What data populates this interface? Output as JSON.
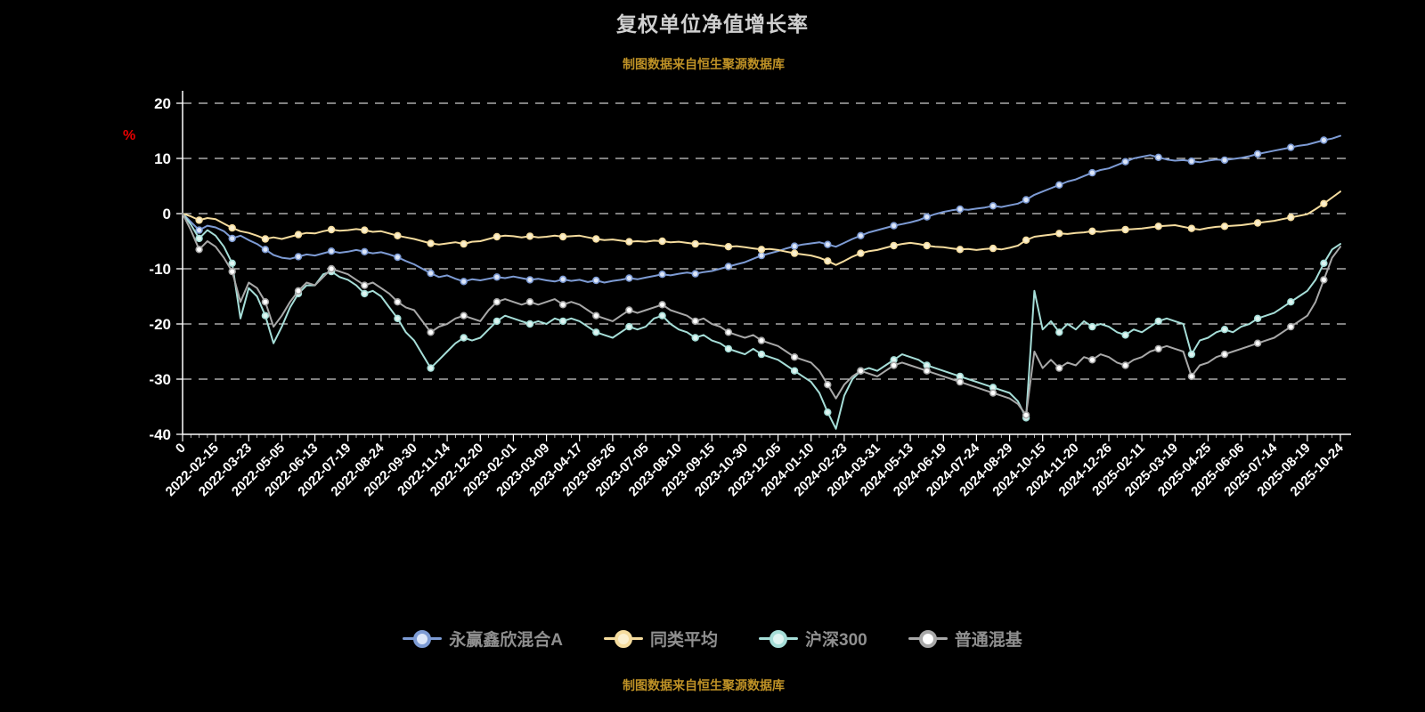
{
  "title": "复权单位净值增长率",
  "source_note_top": "制图数据来自恒生聚源数据库",
  "source_note_bottom": "制图数据来自恒生聚源数据库",
  "colors": {
    "background": "#000000",
    "title": "#d0d0d0",
    "source_note": "#bf9226",
    "axis_text": "#ffffff",
    "percent_label": "#e60000",
    "legend_text": "#8f8f8f",
    "grid": "#ffffff"
  },
  "chart_data": {
    "type": "line",
    "title": "复权单位净值增长率",
    "ylabel": "%",
    "ylim": [
      -40,
      20
    ],
    "y_ticks": [
      20,
      10,
      0,
      -10,
      -20,
      -30,
      -40
    ],
    "grid": "horizontal-dashed",
    "legend_position": "bottom",
    "points_per_label_interval": 4,
    "x_labels": [
      "0",
      "2022-02-15",
      "2022-03-23",
      "2022-05-05",
      "2022-06-13",
      "2022-07-19",
      "2022-08-24",
      "2022-09-30",
      "2022-11-14",
      "2022-12-20",
      "2023-02-01",
      "2023-03-09",
      "2023-04-17",
      "2023-05-26",
      "2023-07-05",
      "2023-08-10",
      "2023-09-15",
      "2023-10-30",
      "2023-12-05",
      "2024-01-10",
      "2024-02-23",
      "2024-03-31",
      "2024-05-13",
      "2024-06-19",
      "2024-07-24",
      "2024-08-29",
      "2024-10-15",
      "2024-11-20",
      "2024-12-26",
      "2025-02-11",
      "2025-03-19",
      "2025-04-25",
      "2025-06-06",
      "2025-07-14",
      "2025-08-19",
      "2025-10-24"
    ],
    "series": [
      {
        "name": "永赢鑫欣混合A",
        "color": "#7d9bd4",
        "marker_fill": "#dce6f8",
        "values": [
          0,
          -1.5,
          -3,
          -2.2,
          -2.5,
          -3.2,
          -4.5,
          -4,
          -4.8,
          -5.5,
          -6.5,
          -7.5,
          -8,
          -8.2,
          -7.8,
          -7.4,
          -7.6,
          -7.2,
          -6.8,
          -7.1,
          -6.9,
          -6.6,
          -6.9,
          -7.2,
          -7,
          -7.4,
          -7.9,
          -8.6,
          -9.2,
          -10,
          -10.8,
          -11.5,
          -11.2,
          -11.8,
          -12.3,
          -11.9,
          -12.1,
          -11.8,
          -11.5,
          -11.7,
          -11.4,
          -11.7,
          -12,
          -11.8,
          -12.1,
          -12.3,
          -11.9,
          -12.2,
          -12,
          -12.4,
          -12.1,
          -12.5,
          -12.2,
          -12,
          -11.7,
          -11.9,
          -11.6,
          -11.3,
          -11,
          -11.2,
          -10.9,
          -10.7,
          -10.9,
          -10.6,
          -10.4,
          -10,
          -9.6,
          -9.2,
          -8.8,
          -8.2,
          -7.6,
          -7.2,
          -6.8,
          -6.3,
          -5.9,
          -5.6,
          -5.4,
          -5.2,
          -5.6,
          -6,
          -5.3,
          -4.6,
          -4,
          -3.4,
          -3,
          -2.6,
          -2.2,
          -1.9,
          -1.6,
          -1.2,
          -0.6,
          -0.1,
          0.3,
          0.6,
          0.8,
          0.7,
          0.9,
          1.1,
          1.4,
          1.2,
          1.5,
          1.8,
          2.5,
          3.4,
          4,
          4.6,
          5.2,
          5.8,
          6.2,
          6.8,
          7.4,
          7.9,
          8.2,
          8.8,
          9.4,
          10,
          10.3,
          10.6,
          10.2,
          9.8,
          9.6,
          9.7,
          9.5,
          9.3,
          9.6,
          9.8,
          9.7,
          9.9,
          10.1,
          10.4,
          10.8,
          11.1,
          11.4,
          11.7,
          12,
          12.3,
          12.5,
          12.9,
          13.3,
          13.6,
          14.1
        ]
      },
      {
        "name": "同类平均",
        "color": "#f5dc9e",
        "marker_fill": "#fbf0cf",
        "values": [
          0,
          -0.5,
          -1.2,
          -0.8,
          -1,
          -1.8,
          -2.6,
          -3.2,
          -3.5,
          -4,
          -4.6,
          -4.3,
          -4.6,
          -4.2,
          -3.8,
          -3.5,
          -3.6,
          -3.2,
          -2.9,
          -3.1,
          -3,
          -2.8,
          -3,
          -3.3,
          -3.2,
          -3.6,
          -4,
          -4.3,
          -4.6,
          -5,
          -5.4,
          -5.6,
          -5.4,
          -5.2,
          -5.5,
          -5.1,
          -5,
          -4.6,
          -4.2,
          -4,
          -4.1,
          -4.3,
          -4.1,
          -4.3,
          -4.2,
          -4,
          -4.2,
          -4.1,
          -4,
          -4.3,
          -4.6,
          -4.8,
          -4.7,
          -4.9,
          -5.1,
          -5,
          -5.1,
          -4.9,
          -5,
          -5.2,
          -5.1,
          -5.3,
          -5.5,
          -5.4,
          -5.6,
          -5.8,
          -6,
          -5.9,
          -6.1,
          -6.3,
          -6.5,
          -6.4,
          -6.6,
          -6.9,
          -7.2,
          -7.4,
          -7.6,
          -8,
          -8.6,
          -9.3,
          -8.6,
          -7.8,
          -7.2,
          -6.8,
          -6.6,
          -6.2,
          -5.8,
          -5.5,
          -5.3,
          -5.5,
          -5.8,
          -6,
          -6.1,
          -6.3,
          -6.5,
          -6.4,
          -6.6,
          -6.4,
          -6.3,
          -6.5,
          -6.2,
          -5.8,
          -4.8,
          -4.2,
          -4,
          -3.8,
          -3.6,
          -3.7,
          -3.5,
          -3.4,
          -3.2,
          -3.3,
          -3.1,
          -3,
          -2.9,
          -2.8,
          -2.7,
          -2.5,
          -2.3,
          -2.2,
          -2.1,
          -2.4,
          -2.7,
          -2.9,
          -2.6,
          -2.4,
          -2.3,
          -2.2,
          -2.1,
          -1.9,
          -1.7,
          -1.5,
          -1.3,
          -1,
          -0.7,
          -0.4,
          -0.1,
          0.8,
          1.8,
          2.9,
          4
        ]
      },
      {
        "name": "沪深300",
        "color": "#a6ded8",
        "marker_fill": "#dff5f2",
        "values": [
          0,
          -2,
          -4.5,
          -3,
          -4,
          -6,
          -9,
          -19,
          -13.5,
          -15,
          -18.5,
          -23.5,
          -20.5,
          -17,
          -14.5,
          -13,
          -13,
          -11,
          -10.5,
          -11.5,
          -12,
          -13,
          -14.5,
          -14,
          -15,
          -17,
          -19,
          -21.5,
          -23,
          -25.5,
          -28,
          -26.5,
          -25,
          -23.5,
          -22.5,
          -23,
          -22.5,
          -21,
          -19.5,
          -18.5,
          -19,
          -19.5,
          -20,
          -19.5,
          -20,
          -19,
          -19.5,
          -19,
          -19.5,
          -20.5,
          -21.5,
          -22,
          -22.5,
          -21.5,
          -20.5,
          -21,
          -20.5,
          -19,
          -18.5,
          -20,
          -21,
          -21.5,
          -22.5,
          -22,
          -23,
          -23.5,
          -24.5,
          -25,
          -25.5,
          -24.5,
          -25.5,
          -26,
          -26.5,
          -27.5,
          -28.5,
          -29.5,
          -30.5,
          -32.5,
          -36,
          -39,
          -33,
          -30,
          -28.5,
          -28,
          -28.5,
          -27.5,
          -26.5,
          -25.5,
          -26,
          -26.5,
          -27.5,
          -28,
          -28.5,
          -29,
          -29.5,
          -30,
          -30.5,
          -31,
          -31.5,
          -32,
          -32.5,
          -34,
          -37,
          -14,
          -21,
          -19.5,
          -21.5,
          -20,
          -21,
          -19.5,
          -20.5,
          -20,
          -20.5,
          -21.5,
          -22,
          -21,
          -21.5,
          -20.5,
          -19.5,
          -19,
          -19.5,
          -20,
          -25.5,
          -23,
          -22.5,
          -21.5,
          -21,
          -21.5,
          -20.5,
          -20,
          -19,
          -18.5,
          -18,
          -17,
          -16,
          -15,
          -14,
          -12,
          -9,
          -6.5,
          -5.5
        ]
      },
      {
        "name": "普通混基",
        "color": "#a8a8a8",
        "marker_fill": "#ffffff",
        "values": [
          0,
          -3,
          -6.5,
          -5,
          -6,
          -8,
          -10.5,
          -16,
          -12.5,
          -13.5,
          -16,
          -20.5,
          -18.5,
          -16,
          -14,
          -12.5,
          -13,
          -11.5,
          -10,
          -10.5,
          -11,
          -12,
          -13,
          -12.5,
          -13.5,
          -14.5,
          -16,
          -17,
          -17.5,
          -19.5,
          -21.5,
          -20.5,
          -20,
          -19,
          -18.5,
          -19,
          -19.5,
          -17.5,
          -16,
          -15.5,
          -16,
          -16.5,
          -16,
          -16.5,
          -16,
          -15.5,
          -16.5,
          -16,
          -16.5,
          -17.5,
          -18.5,
          -19,
          -19.5,
          -18.5,
          -17.5,
          -18,
          -17.5,
          -17,
          -16.5,
          -17.5,
          -18,
          -18.5,
          -19.5,
          -19,
          -20,
          -20.5,
          -21.5,
          -22,
          -22.5,
          -22,
          -23,
          -23.5,
          -24,
          -25,
          -26,
          -26.5,
          -27,
          -28.5,
          -31,
          -33.5,
          -31,
          -29.5,
          -28.5,
          -29,
          -29.5,
          -28.5,
          -27.5,
          -27,
          -27.5,
          -28,
          -28.5,
          -29,
          -29.5,
          -30,
          -30.5,
          -31,
          -31.5,
          -32,
          -32.5,
          -33,
          -33.5,
          -34.5,
          -36.5,
          -25,
          -28,
          -26.5,
          -28,
          -27,
          -27.5,
          -26,
          -26.5,
          -25.5,
          -26,
          -27,
          -27.5,
          -26.5,
          -26,
          -25,
          -24.5,
          -24,
          -24.5,
          -25,
          -29.5,
          -27.5,
          -27,
          -26,
          -25.5,
          -25,
          -24.5,
          -24,
          -23.5,
          -23,
          -22.5,
          -21.5,
          -20.5,
          -19.5,
          -18.5,
          -16,
          -12,
          -8,
          -6
        ]
      }
    ]
  }
}
